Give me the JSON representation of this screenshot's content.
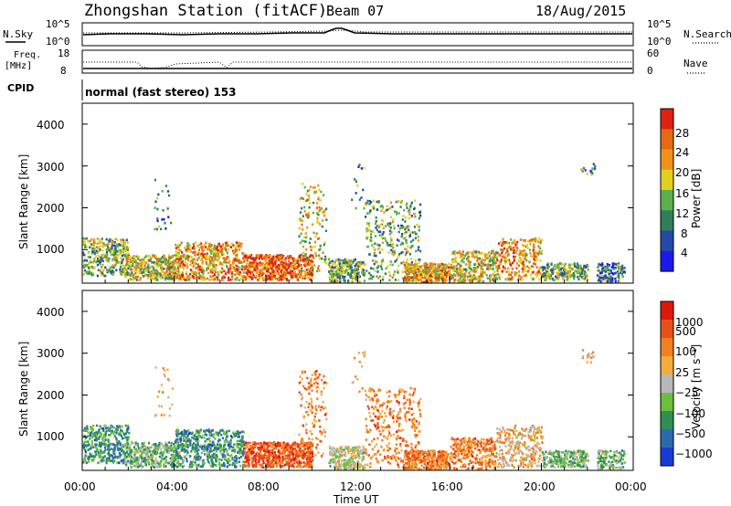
{
  "header": {
    "station": "Zhongshan Station (fitACF)",
    "beam": "Beam 07",
    "date": "18/Aug/2015"
  },
  "sky_panel": {
    "left_label": "N.Sky",
    "left_top": "10^5",
    "left_bottom": "10^0",
    "right_label": "N.Search",
    "right_top": "10^5",
    "right_bottom": "10^0"
  },
  "freq_panel": {
    "left_label_1": "Freq.",
    "left_label_2": "[MHz]",
    "left_top": "18",
    "left_bottom": "8",
    "right_label": "Nave",
    "right_top": "60",
    "right_bottom": "0"
  },
  "cpid": {
    "label": "CPID",
    "text": "normal (fast stereo) 153"
  },
  "colors": {
    "blue": "#1f2fd8",
    "navy": "#243f8f",
    "teal": "#2a6e7a",
    "green": "#3d8f4a",
    "lightgreen": "#7fc242",
    "yellow": "#e0d11c",
    "orange": "#f0921a",
    "darkorange": "#e56a12",
    "red": "#e02010",
    "grey": "#b0b0b0",
    "lightorange": "#f5ab3c"
  },
  "chart_data": [
    {
      "type": "heatmap",
      "ylabel": "Slant Range [km]",
      "yticks": [
        "1000",
        "2000",
        "3000",
        "4000"
      ],
      "ylim": [
        200,
        4500
      ],
      "xticks": [
        "00:00",
        "04:00",
        "08:00",
        "12:00",
        "16:00",
        "20:00",
        "00:00"
      ],
      "xlim": [
        0,
        24
      ],
      "colorbar": {
        "label": "Power [dB]",
        "ticks": [
          "4",
          "8",
          "12",
          "16",
          "20",
          "24",
          "28"
        ],
        "colors": [
          "#1a1aee",
          "#244aa8",
          "#2f7f5a",
          "#5ab04a",
          "#e0d11c",
          "#f0921a",
          "#e56a12",
          "#e02010"
        ]
      }
    },
    {
      "type": "heatmap",
      "ylabel": "Slant Range [km]",
      "yticks": [
        "1000",
        "2000",
        "3000",
        "4000"
      ],
      "ylim": [
        200,
        4500
      ],
      "xticks": [
        "00:00",
        "04:00",
        "08:00",
        "12:00",
        "16:00",
        "20:00",
        "00:00"
      ],
      "xlim": [
        0,
        24
      ],
      "xlabel": "Time UT",
      "colorbar": {
        "label": "Velocity [m s⁻¹]",
        "ticks": [
          "1000",
          "500",
          "100",
          "25",
          "−25",
          "−100",
          "−500",
          "−1000"
        ],
        "colors": [
          "#1a3ad8",
          "#2c6ab0",
          "#2f8f55",
          "#6cbf3c",
          "#b8b8b8",
          "#f5ab3c",
          "#f08020",
          "#e8501a",
          "#e01808"
        ]
      }
    }
  ]
}
